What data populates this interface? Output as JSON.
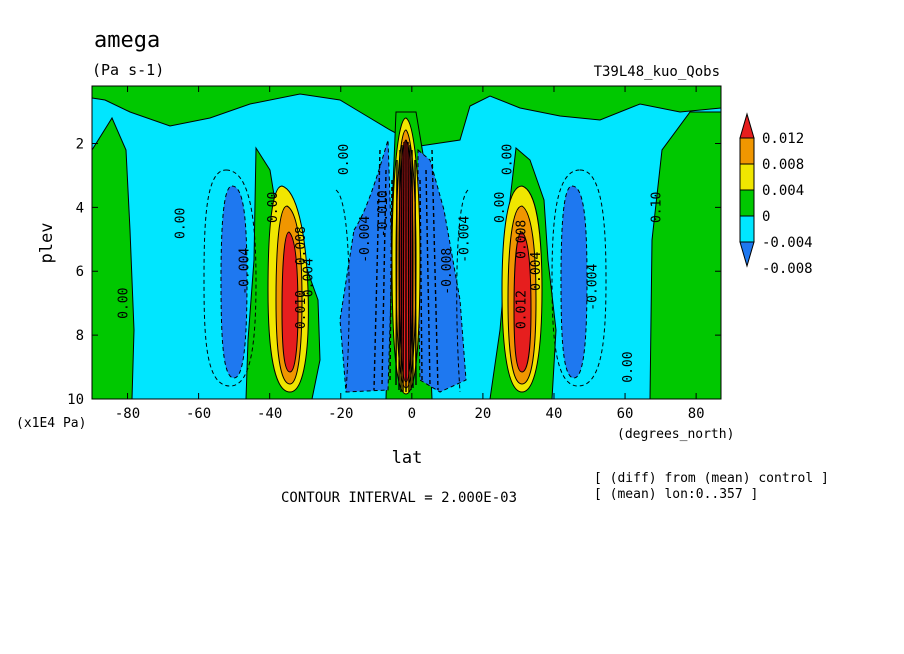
{
  "chart_data": {
    "type": "heatmap",
    "title": "amega",
    "units": "(Pa s-1)",
    "experiment": "T39L48_kuo_Qobs",
    "xlabel": "lat",
    "xunits": "(degrees_north)",
    "ylabel": "plev",
    "yunits": "(x1E4 Pa)",
    "xlim": [
      -90,
      87
    ],
    "ylim": [
      10,
      0.2
    ],
    "x_ticks": [
      -80,
      -60,
      -40,
      -20,
      0,
      20,
      40,
      60,
      80
    ],
    "x_tick_labels": [
      "-80",
      "-60",
      "-40",
      "-20",
      "0",
      "20",
      "40",
      "60",
      "80"
    ],
    "y_ticks": [
      2,
      4,
      6,
      8,
      10
    ],
    "y_tick_labels": [
      "2",
      "4",
      "6",
      "8",
      "10"
    ],
    "contour_interval_text": "CONTOUR INTERVAL = 2.000E-03",
    "notes": [
      "[ (diff) from (mean) control ]",
      "[ (mean) lon:0..357 ]"
    ],
    "colorbar": {
      "levels": [
        -0.008,
        -0.004,
        0,
        0.004,
        0.008,
        0.012
      ],
      "labels": [
        "-0.008",
        "-0.004",
        "0",
        "0.004",
        "0.008",
        "0.012"
      ],
      "colors": [
        "#1e78f0",
        "#00e6ff",
        "#00c800",
        "#f0e600",
        "#f09600",
        "#e61e1e"
      ]
    },
    "contour_labels": [
      {
        "lat": -80,
        "plev": 7.0,
        "text": "0.00"
      },
      {
        "lat": -64,
        "plev": 4.5,
        "text": "0.00"
      },
      {
        "lat": -46,
        "plev": 6.0,
        "text": "-0.004"
      },
      {
        "lat": -38,
        "plev": 4.0,
        "text": "0.00"
      },
      {
        "lat": -30,
        "plev": 5.2,
        "text": "0.008"
      },
      {
        "lat": -28,
        "plev": 6.2,
        "text": "0.004"
      },
      {
        "lat": -30,
        "plev": 7.2,
        "text": "0.010"
      },
      {
        "lat": -18,
        "plev": 2.5,
        "text": "0.00"
      },
      {
        "lat": -12,
        "plev": 5.0,
        "text": "-0.004"
      },
      {
        "lat": -7,
        "plev": 4.2,
        "text": "-0.010"
      },
      {
        "lat": 16,
        "plev": 5.0,
        "text": "-0.004"
      },
      {
        "lat": 11,
        "plev": 6.0,
        "text": "-0.008"
      },
      {
        "lat": 28,
        "plev": 2.5,
        "text": "0.00"
      },
      {
        "lat": 26,
        "plev": 4.0,
        "text": "0.00"
      },
      {
        "lat": 32,
        "plev": 5.0,
        "text": "0.008"
      },
      {
        "lat": 36,
        "plev": 6.0,
        "text": "0.004"
      },
      {
        "lat": 32,
        "plev": 7.2,
        "text": "0.012"
      },
      {
        "lat": 52,
        "plev": 6.5,
        "text": "-0.004"
      },
      {
        "lat": 70,
        "plev": 4.0,
        "text": "0.10"
      },
      {
        "lat": 62,
        "plev": 9.0,
        "text": "0.00"
      }
    ]
  }
}
